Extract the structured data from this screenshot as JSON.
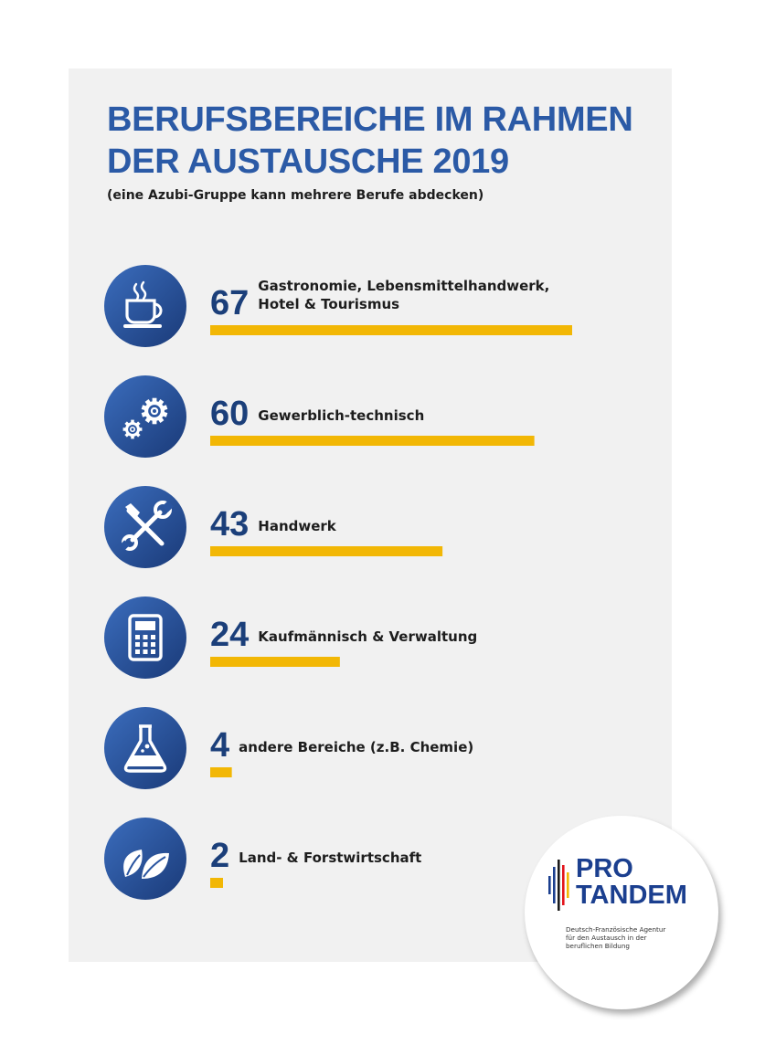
{
  "header": {
    "title_line1": "BERUFSBEREICHE IM RAHMEN",
    "title_line2": "DER AUSTAUSCHE 2019",
    "subtitle": "(eine Azubi-Gruppe kann mehrere Berufe abdecken)"
  },
  "colors": {
    "title": "#2b5aa6",
    "number": "#1b3f7a",
    "bar": "#f2b705",
    "icon_light": "#3b6dbd",
    "icon_dark": "#1a3a78",
    "card": "#f1f1f1"
  },
  "chart_data": {
    "type": "bar",
    "orientation": "horizontal",
    "title": "BERUFSBEREICHE IM RAHMEN DER AUSTAUSCHE 2019",
    "subtitle": "(eine Azubi-Gruppe kann mehrere Berufe abdecken)",
    "grid": false,
    "xlim": [
      0,
      67
    ],
    "categories": [
      [
        "Gastronomie, Lebensmittelhandwerk,",
        "Hotel & Tourismus"
      ],
      [
        "Gewerblich-technisch"
      ],
      [
        "Handwerk"
      ],
      [
        "Kaufmännisch & Verwaltung"
      ],
      [
        "andere Bereiche (z.B. Chemie)"
      ],
      [
        "Land- & Forstwirtschaft"
      ]
    ],
    "values": [
      67,
      60,
      43,
      24,
      4,
      2
    ],
    "icons": [
      "coffee-cup-icon",
      "gears-icon",
      "wrench-screwdriver-icon",
      "calculator-icon",
      "flask-icon",
      "leaves-icon"
    ]
  },
  "logo": {
    "line1": "PRO",
    "line2": "TANDEM",
    "desc": [
      "Deutsch-Französische Agentur",
      "für den Austausch in der",
      "beruflichen Bildung"
    ]
  }
}
